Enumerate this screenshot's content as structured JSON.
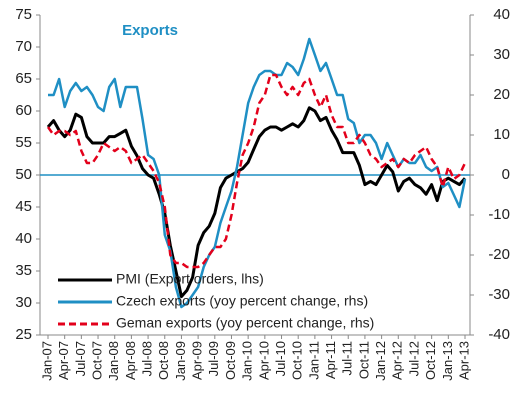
{
  "chart_data": {
    "type": "line",
    "title": "Exports",
    "categories": [
      "Jan-07",
      null,
      null,
      "Apr-07",
      null,
      null,
      "Jul-07",
      null,
      null,
      "Oct-07",
      null,
      null,
      "Jan-08",
      null,
      null,
      "Apr-08",
      null,
      null,
      "Jul-08",
      null,
      null,
      "Oct-08",
      null,
      null,
      "Jan-09",
      null,
      null,
      "Apr-09",
      null,
      null,
      "Jul-09",
      null,
      null,
      "Oct-09",
      null,
      null,
      "Jan-10",
      null,
      null,
      "Apr-10",
      null,
      null,
      "Jul-10",
      null,
      null,
      "Oct-10",
      null,
      null,
      "Jan-11",
      null,
      null,
      "Apr-11",
      null,
      null,
      "Jul-11",
      null,
      null,
      "Oct-11",
      null,
      null,
      "Jan-12",
      null,
      null,
      "Apr-12",
      null,
      null,
      "Jul-12",
      null,
      null,
      "Oct-12",
      null,
      null,
      "Jan-13",
      null,
      null,
      "Apr-13"
    ],
    "series": [
      {
        "name": "PMI (Export orders, lhs)",
        "color": "#000000",
        "dash": "solid",
        "axis": "y",
        "values": [
          57.5,
          58.5,
          57,
          56,
          57,
          59.5,
          59,
          56,
          55,
          55,
          55,
          56,
          56,
          56.5,
          57,
          54.5,
          53,
          51,
          50,
          49.5,
          47,
          44,
          39,
          35,
          31,
          32,
          34,
          39,
          41,
          42,
          44,
          48,
          49.5,
          50,
          50.5,
          51,
          52,
          54,
          56,
          57,
          57.5,
          57.5,
          57,
          57.5,
          58,
          57.5,
          58.5,
          60.5,
          60,
          58.5,
          59,
          57,
          55.5,
          53.5,
          53.5,
          53.5,
          51.5,
          48.5,
          49,
          48.5,
          50,
          51.5,
          50.5,
          47.5,
          49,
          49.5,
          48.5,
          48,
          47,
          48.5,
          46,
          49,
          49.5,
          49,
          48.5,
          49.5
        ]
      },
      {
        "name": "Czech exports (yoy percent change, rhs)",
        "color": "#1f8fc4",
        "dash": "solid",
        "axis": "y2",
        "values": [
          20,
          20,
          24,
          17,
          21,
          23,
          21,
          22,
          20,
          17,
          16,
          22,
          24,
          17,
          22,
          22,
          22,
          14,
          5,
          4,
          0,
          -15,
          -19,
          -28,
          -33,
          -32,
          -30,
          -28,
          -23,
          -20,
          -18,
          -12,
          -8,
          -4,
          2,
          10,
          18,
          22,
          25,
          26,
          26,
          25,
          25,
          28,
          27,
          25,
          29,
          34,
          30,
          26,
          28,
          24,
          20,
          20,
          14,
          13,
          8,
          10,
          10,
          8,
          4,
          8,
          5,
          2,
          4,
          3,
          3,
          5,
          2,
          1,
          2,
          -3,
          -2,
          -5,
          -8,
          -1
        ]
      },
      {
        "name": "Geman exports (yoy percent change, rhs)",
        "color": "#e3001b",
        "dash": "dashed",
        "axis": "y2",
        "values": [
          12,
          10,
          11,
          11,
          10,
          11,
          6,
          3,
          3,
          5,
          8,
          7,
          6,
          7,
          6,
          3,
          4,
          5,
          3,
          1,
          -2,
          -8,
          -20,
          -22,
          -22,
          -23,
          -23,
          -23,
          -22,
          -20,
          -18,
          -18,
          -16,
          -10,
          -2,
          5,
          8,
          12,
          18,
          20,
          25,
          25,
          22,
          20,
          22,
          20,
          23,
          24,
          20,
          17,
          20,
          15,
          12,
          12,
          8,
          8,
          10,
          8,
          5,
          4,
          2,
          3,
          4,
          2,
          4,
          3,
          5,
          6,
          7,
          4,
          2,
          -3,
          2,
          -1,
          0,
          3
        ]
      }
    ],
    "ylim": [
      25,
      75
    ],
    "yticks": [
      25,
      30,
      35,
      40,
      45,
      50,
      55,
      60,
      65,
      70,
      75
    ],
    "y2lim": [
      -40,
      40
    ],
    "y2ticks": [
      -40,
      -30,
      -20,
      -10,
      0,
      10,
      20,
      30,
      40
    ],
    "hline": 50,
    "hline_color": "#1f8fc4",
    "legend": "bottom-left"
  }
}
